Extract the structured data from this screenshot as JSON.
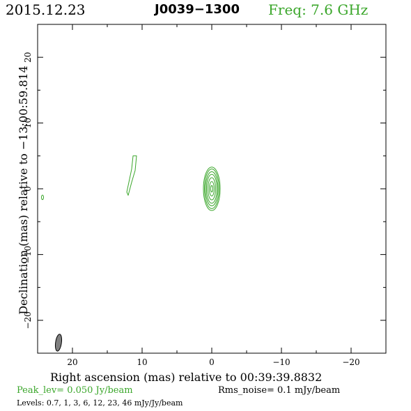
{
  "header": {
    "date": "2015.12.23",
    "source": "J0039−1300",
    "frequency": "Freq: 7.6 GHz"
  },
  "footer": {
    "peak": "Peak_lev=  0.050 Jy/beam",
    "rms": "Rms_noise=  0.1 mJy/beam",
    "levels": "Levels: 0.7,    1,    3,    6,   12,   23,   46 mJy/Jy/beam"
  },
  "chart_data": {
    "type": "contour",
    "xlabel": "Right ascension (mas) relative to 00:39:39.8832",
    "ylabel": "Declination (mas) relative to −13:00:59.814",
    "xlim": [
      25,
      -25
    ],
    "ylim": [
      -25,
      25
    ],
    "x_ticks": [
      20,
      10,
      0,
      -10,
      -20
    ],
    "x_tick_labels": [
      "20",
      "10",
      "0",
      "−10",
      "−20"
    ],
    "y_ticks": [
      -20,
      -10,
      0,
      10,
      20
    ],
    "y_tick_labels": [
      "−20",
      "−10",
      "0",
      "10",
      "20"
    ],
    "grid": false,
    "contour_color": "#3aa62a",
    "contour_levels_mJy": [
      0.7,
      1,
      3,
      6,
      12,
      23,
      46
    ],
    "core": {
      "x": 0,
      "y": 0,
      "contours": [
        {
          "rx": 1.2,
          "ry": 3.3
        },
        {
          "rx": 1.05,
          "ry": 3.0
        },
        {
          "rx": 0.9,
          "ry": 2.6
        },
        {
          "rx": 0.75,
          "ry": 2.2
        },
        {
          "rx": 0.55,
          "ry": 1.7
        },
        {
          "rx": 0.35,
          "ry": 1.1
        },
        {
          "rx": 0.15,
          "ry": 0.5
        }
      ]
    },
    "jet_component": {
      "points": [
        [
          12.0,
          -1.0
        ],
        [
          11.5,
          1.0
        ],
        [
          11.0,
          2.8
        ],
        [
          10.8,
          5.0
        ],
        [
          11.3,
          5.0
        ],
        [
          11.5,
          3.0
        ],
        [
          11.9,
          1.0
        ],
        [
          12.2,
          -0.5
        ],
        [
          12.0,
          -1.0
        ]
      ]
    },
    "small_component": {
      "x": 24.3,
      "y": -1.3,
      "rx": 0.15,
      "ry": 0.35
    },
    "beam": {
      "x": 22.0,
      "y": -23.4,
      "major": 2.6,
      "minor": 0.85,
      "pa_deg": 8,
      "fill": "#7f7f7f"
    }
  }
}
